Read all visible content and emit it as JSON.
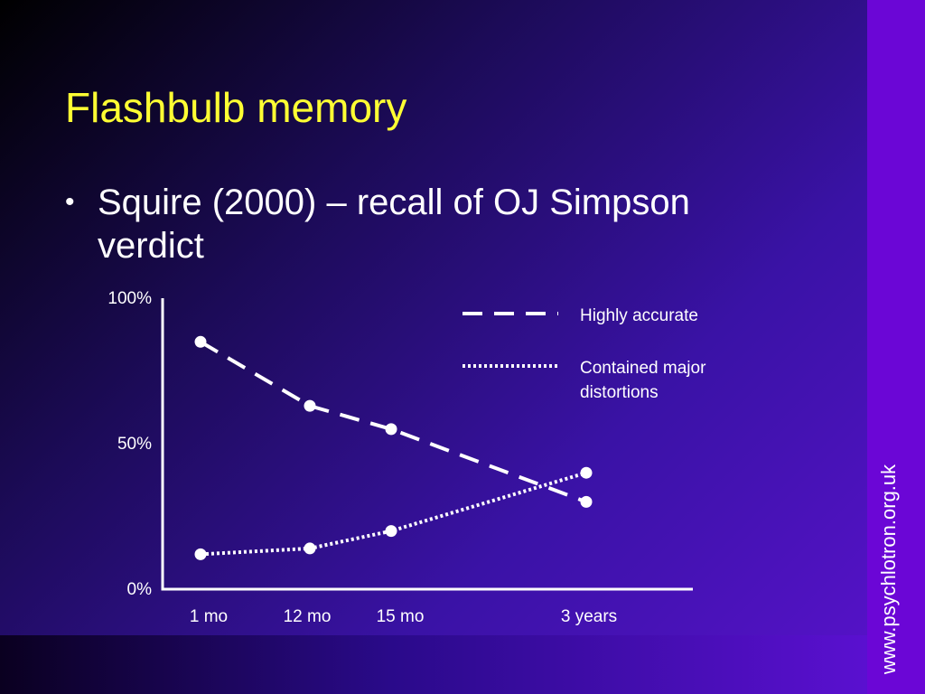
{
  "slide": {
    "title": "Flashbulb memory",
    "bullet": "Squire (2000) – recall of OJ Simpson verdict",
    "watermark": "www.psychlotron.org.uk"
  },
  "colors": {
    "title": "#ffff33",
    "text": "#ffffff",
    "side_bar": "#6b06d6"
  },
  "chart_data": {
    "type": "line",
    "categories": [
      "1 mo",
      "12 mo",
      "15 mo",
      "3 years"
    ],
    "ylim": [
      0,
      100
    ],
    "yticks": [
      "0%",
      "50%",
      "100%"
    ],
    "ytick_values": [
      0,
      50,
      100
    ],
    "legend_position": "top-right",
    "series": [
      {
        "name": "Highly accurate",
        "style": "dashed",
        "values": [
          85,
          63,
          55,
          30
        ]
      },
      {
        "name": "Contained major distortions",
        "style": "dotted",
        "values": [
          12,
          14,
          20,
          40
        ]
      }
    ]
  }
}
